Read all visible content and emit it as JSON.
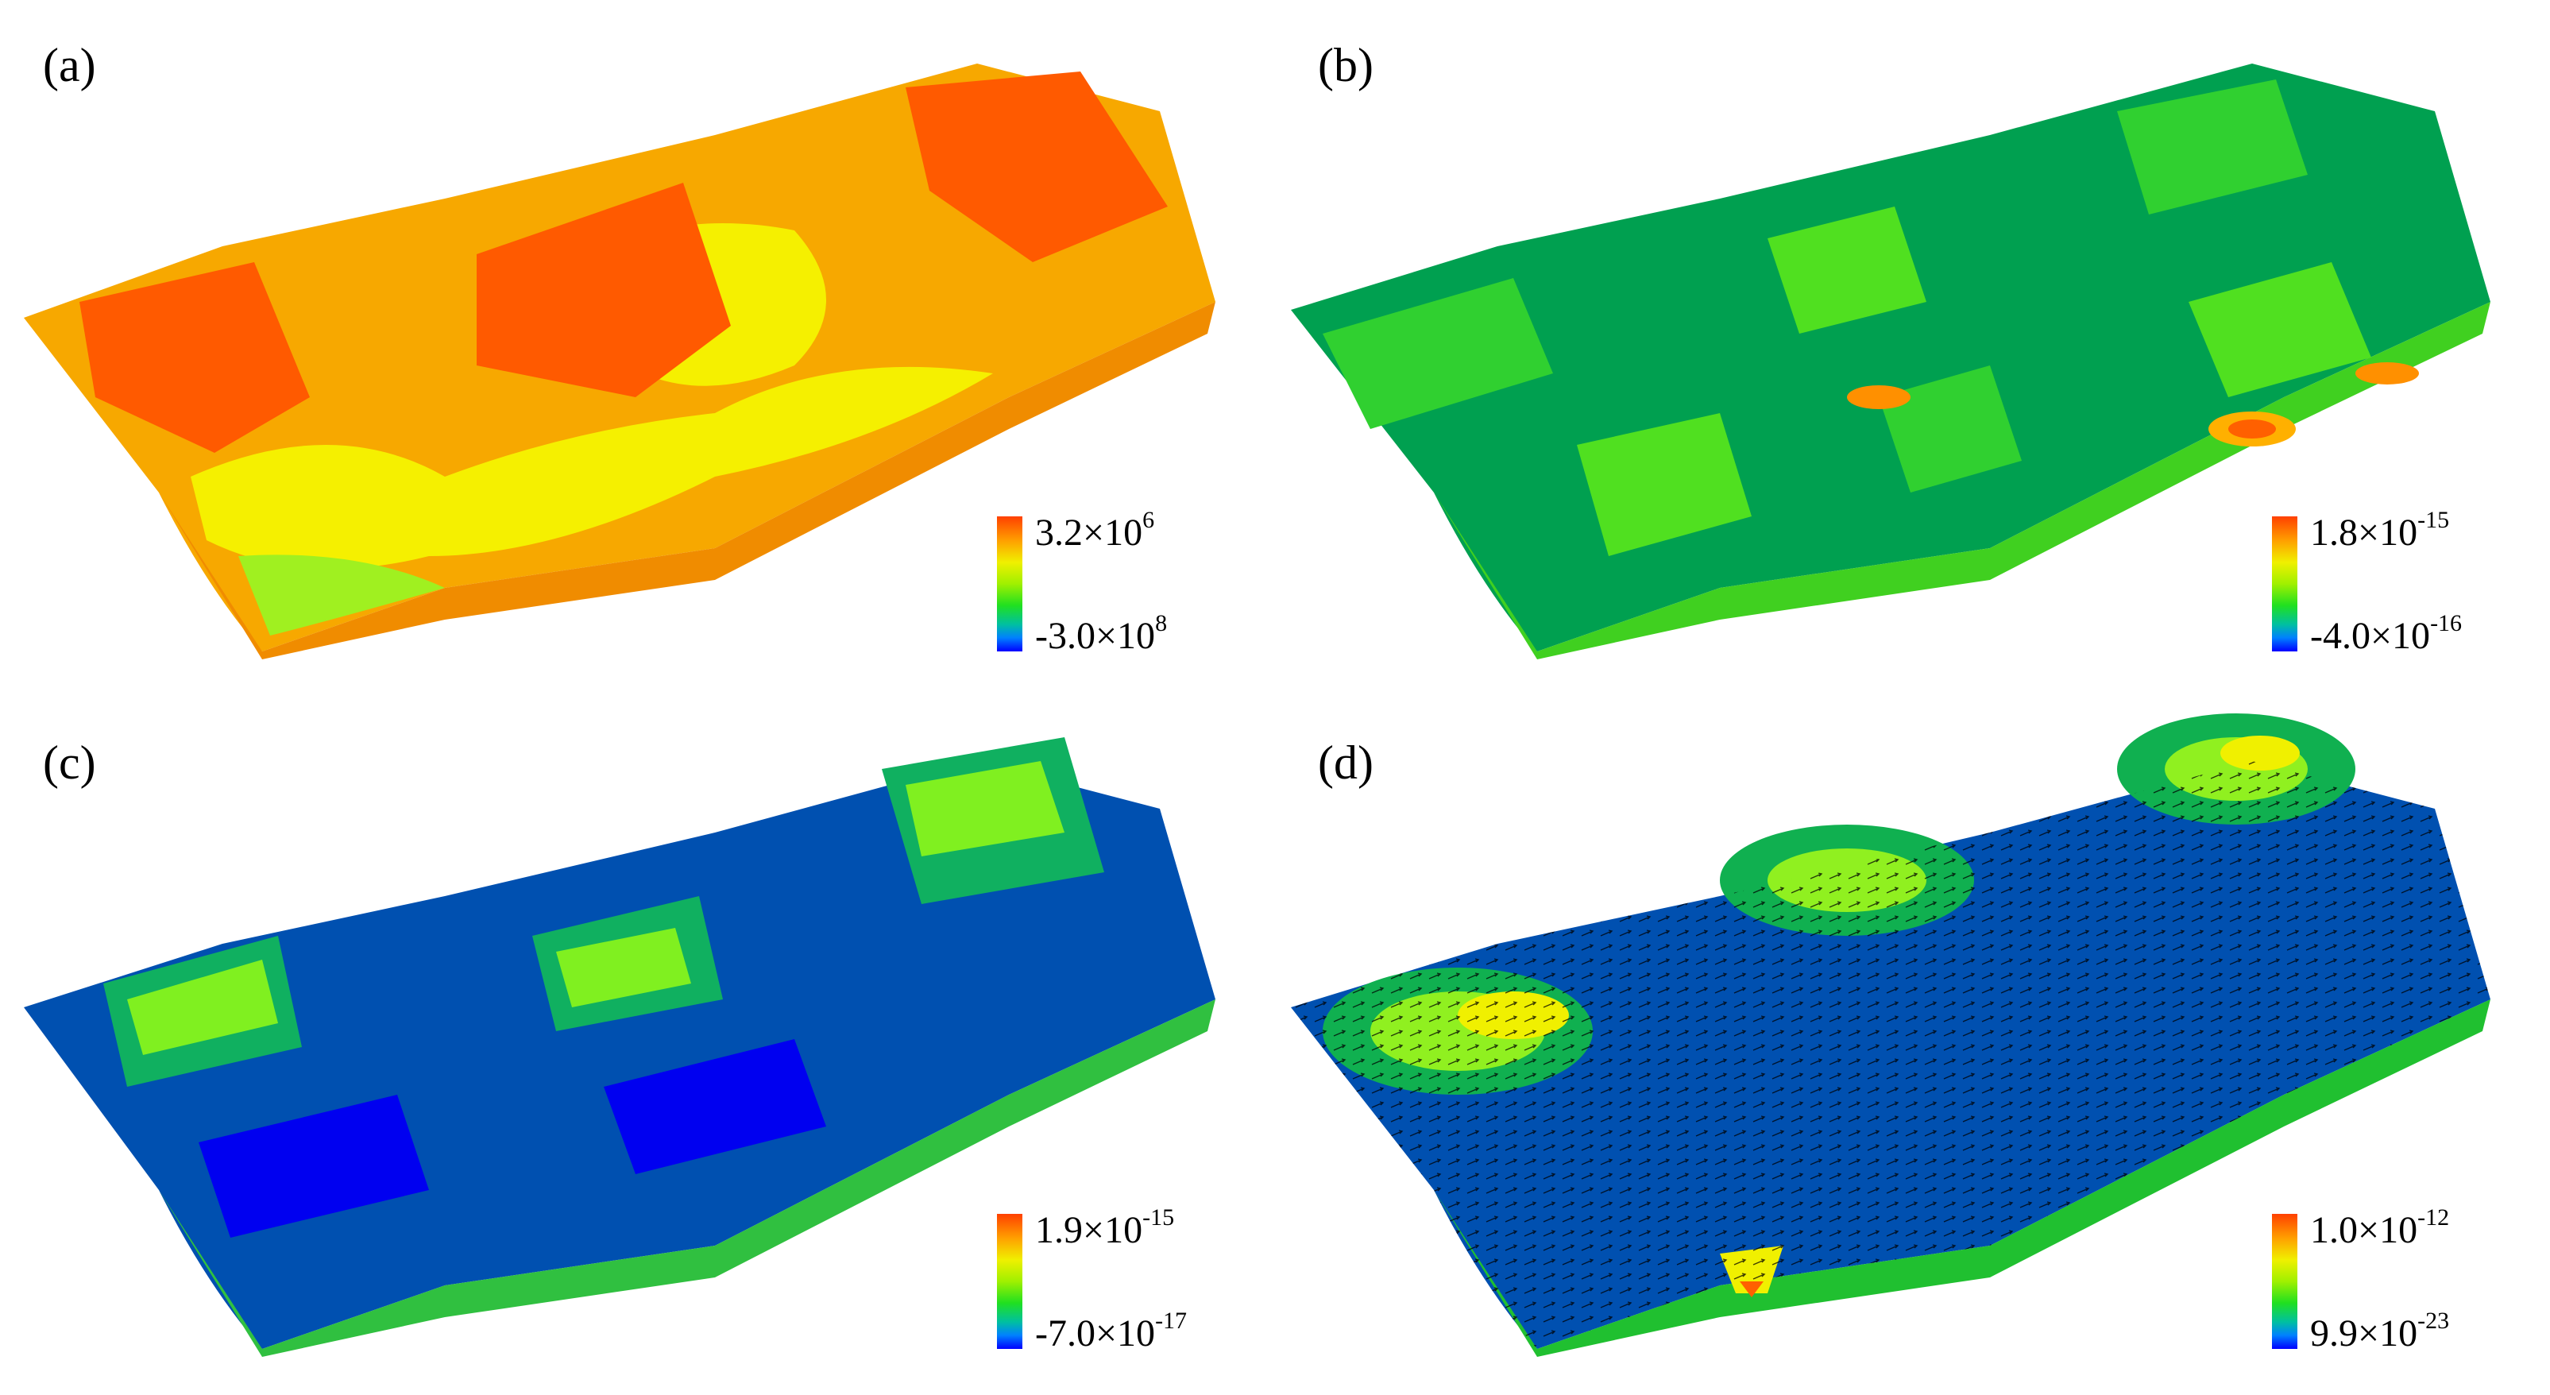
{
  "panels": [
    {
      "label": "(a)",
      "legend": {
        "max_mantissa": "3.2",
        "max_exp": "6",
        "min_mantissa": "-3.0",
        "min_exp": "8"
      }
    },
    {
      "label": "(b)",
      "legend": {
        "max_mantissa": "1.8",
        "max_exp": "-15",
        "min_mantissa": "-4.0",
        "min_exp": "-16"
      }
    },
    {
      "label": "(c)",
      "legend": {
        "max_mantissa": "1.9",
        "max_exp": "-15",
        "min_mantissa": "-7.0",
        "min_exp": "-17"
      }
    },
    {
      "label": "(d)",
      "legend": {
        "max_mantissa": "1.0",
        "max_exp": "-12",
        "min_mantissa": "9.9",
        "min_exp": "-23"
      }
    }
  ],
  "times_symbol": "×10",
  "colormap": {
    "high": "#ff4000",
    "mid_high": "#f0f000",
    "mid": "#20e020",
    "low": "#0000ff"
  },
  "panel_base_colors": {
    "a": "#f7a800",
    "b": "#00a050",
    "c": "#0050b0",
    "d": "#0050b0"
  }
}
